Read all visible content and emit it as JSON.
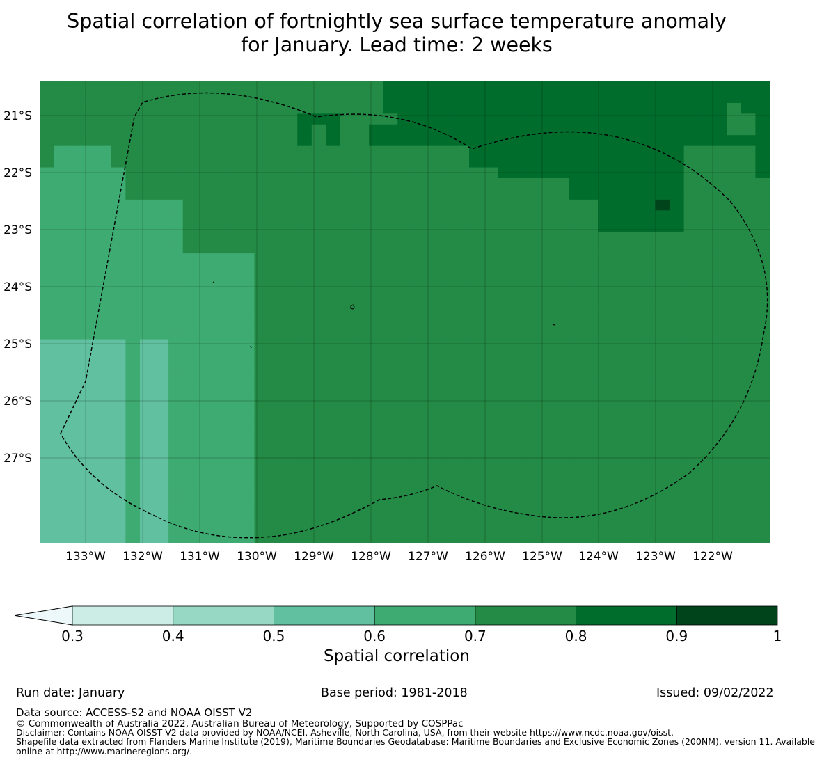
{
  "title": {
    "line1": "Spatial correlation of fortnightly sea surface temperature anomaly",
    "line2": "for January. Lead time: 2 weeks"
  },
  "map": {
    "lon_ticks": [
      "133°W",
      "132°W",
      "131°W",
      "130°W",
      "129°W",
      "128°W",
      "127°W",
      "126°W",
      "125°W",
      "124°W",
      "123°W",
      "122°W"
    ],
    "lat_ticks": [
      "21°S",
      "22°S",
      "23°S",
      "24°S",
      "25°S",
      "26°S",
      "27°S"
    ],
    "grid": [
      "777777777777777777777777888888888888888888888888888",
      "777777777777777777777777888888888888888888888888888",
      "777777777777777777777777888888888888888888888888788",
      "777777777777777777888777788888888888888888888888778",
      "777777777777777777878778888888888888888888888888778",
      "777777777777777777878778888888888888888888888888888",
      "766667777777777777777777777777888888888888888777778",
      "766667777777777777777777777777888888888888888777778",
      "666666777777777777777777777777778888888888888777778",
      "666666777777777777777777777777777777788888888777777",
      "666666777777777777777777777777777777788888888777777",
      "666666666677777777777777777777777777777888898777777",
      "666666666677777777777777777777777777777888888777777",
      "666666666677777777777777777777777777777888888777777",
      "666666666677777777777777777777777777777777777777777",
      "666666666677777777777777777777777777777777777777777",
      "666666666666666777777777777777777777777777777777777",
      "666666666666666777777777777777777777777777777777777",
      "666666666666666777777777777777777777777777777777777",
      "666666666666666777777777777777777777777777777777777",
      "666666666666666777777777777777777777777777777777777",
      "666666666666666777777777777777777777777777777777777",
      "666666666666666777777777777777777777777777777777777",
      "666666666666666777777777777777777777777777777777777",
      "555555655666666777777777777777777777777777777777777",
      "555555655666666777777777777777777777777777777777777",
      "555555655666666777777777777777777777777777777777777",
      "555555655666666777777777777777777777777777777777777",
      "555555655666666777777777777777777777777777777777777",
      "555555655666666777777777777777777777777777777777777",
      "555555655666666777777777777777777777777777777777777",
      "555555655666666777777777777777777777777777777777777",
      "555555655666666777777777777777777777777777777777777",
      "555555655666666777777777777777777777777777777777777",
      "555555655666666777777777777777777777777777777777777",
      "555555655666666777777777777777777777777777777777777",
      "555555655666666777777777777777777777777777777777777",
      "555555655666666777777777777777777777777777777777777",
      "555555655666666777777777777777777777777777777777777",
      "555555655666666777777777777777777777777777777777777",
      "555555655666666777777777777777777777777777777777777",
      "555555655666666777777777777777777777777777777777777",
      "555555655666666777777777777777777777777777777777777"
    ],
    "colors": {
      "4": "#97d8c4",
      "5": "#60c0a0",
      "6": "#3eab72",
      "7": "#238b45",
      "8": "#006d2c",
      "9": "#00441b"
    },
    "boundary_color": "#000000"
  },
  "colorbar": {
    "ticks": [
      "0.3",
      "0.4",
      "0.5",
      "0.6",
      "0.7",
      "0.8",
      "0.9",
      "1"
    ],
    "extend_color": "#edf8fb",
    "colors": [
      "#ccece6",
      "#97d8c4",
      "#60c0a0",
      "#3eab72",
      "#238b45",
      "#006d2c",
      "#00441b"
    ],
    "label": "Spatial correlation"
  },
  "footer": {
    "run_date": "Run date: January",
    "base_period": "Base period: 1981-2018",
    "issued": "Issued: 09/02/2022",
    "data_source": "Data source: ACCESS-S2 and NOAA OISST V2",
    "copyright": "© Commonwealth of Australia 2022, Australian Bureau of Meteorology, Supported by COSPPac",
    "disclaimer": "Disclaimer: Contains NOAA OISST V2 data provided by NOAA/NCEI, Asheville, North Carolina, USA, from their website https://www.ncdc.noaa.gov/oisst.",
    "shapefile_line1": "Shapefile data extracted from Flanders Marine Institute (2019), Maritime Boundaries Geodatabase: Maritime Boundaries and Exclusive Economic Zones (200NM), version 11. Available",
    "shapefile_line2": "online at http://www.marineregions.org/."
  }
}
